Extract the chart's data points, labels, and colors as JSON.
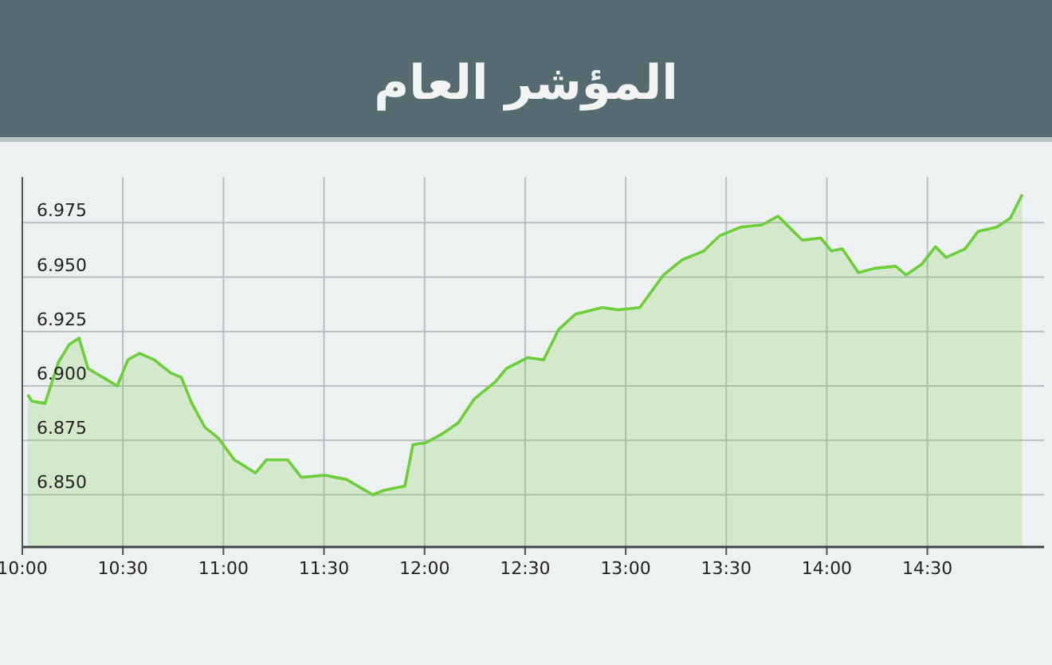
{
  "chart_data": {
    "type": "area",
    "title": "المؤشر العام",
    "xlim": [
      10,
      15.08
    ],
    "ylim": [
      6.826,
      6.996
    ],
    "xticks": [
      {
        "value": 10,
        "label": "10:00"
      },
      {
        "value": 10.5,
        "label": "10:30"
      },
      {
        "value": 11,
        "label": "11:00"
      },
      {
        "value": 11.5,
        "label": "11:30"
      },
      {
        "value": 12,
        "label": "12:00"
      },
      {
        "value": 12.5,
        "label": "12:30"
      },
      {
        "value": 13,
        "label": "13:00"
      },
      {
        "value": 13.5,
        "label": "13:30"
      },
      {
        "value": 14,
        "label": "14:00"
      },
      {
        "value": 14.5,
        "label": "14:30"
      }
    ],
    "yticks": [
      {
        "value": 6.85,
        "label": "6.850"
      },
      {
        "value": 6.875,
        "label": "6.875"
      },
      {
        "value": 6.9,
        "label": "6.900"
      },
      {
        "value": 6.925,
        "label": "6.925"
      },
      {
        "value": 6.95,
        "label": "6.950"
      },
      {
        "value": 6.975,
        "label": "6.975"
      }
    ],
    "grid": true,
    "series": [
      {
        "color": "#6ccf3a",
        "x": [
          10.027,
          10.048,
          10.113,
          10.18,
          10.233,
          10.282,
          10.327,
          10.418,
          10.472,
          10.525,
          10.583,
          10.657,
          10.737,
          10.79,
          10.843,
          10.908,
          10.975,
          11.055,
          11.16,
          11.213,
          11.32,
          11.387,
          11.505,
          11.612,
          11.743,
          11.797,
          11.902,
          11.942,
          12.008,
          12.088,
          12.167,
          12.247,
          12.353,
          12.407,
          12.512,
          12.592,
          12.667,
          12.75,
          12.883,
          12.963,
          13.07,
          13.188,
          13.282,
          13.388,
          13.467,
          13.573,
          13.678,
          13.758,
          13.878,
          13.97,
          14.023,
          14.077,
          14.157,
          14.235,
          14.342,
          14.395,
          14.473,
          14.54,
          14.593,
          14.687,
          14.752,
          14.845,
          14.912,
          14.972
        ],
        "values": [
          6.896,
          6.893,
          6.892,
          6.911,
          6.919,
          6.922,
          6.908,
          6.903,
          6.9,
          6.912,
          6.915,
          6.912,
          6.906,
          6.904,
          6.892,
          6.881,
          6.876,
          6.866,
          6.86,
          6.866,
          6.866,
          6.858,
          6.859,
          6.857,
          6.85,
          6.852,
          6.854,
          6.873,
          6.874,
          6.878,
          6.883,
          6.894,
          6.902,
          6.908,
          6.913,
          6.912,
          6.926,
          6.933,
          6.936,
          6.935,
          6.936,
          6.951,
          6.958,
          6.962,
          6.969,
          6.973,
          6.974,
          6.978,
          6.967,
          6.968,
          6.962,
          6.963,
          6.952,
          6.954,
          6.955,
          6.951,
          6.956,
          6.964,
          6.959,
          6.963,
          6.971,
          6.973,
          6.977,
          6.988
        ]
      }
    ]
  }
}
